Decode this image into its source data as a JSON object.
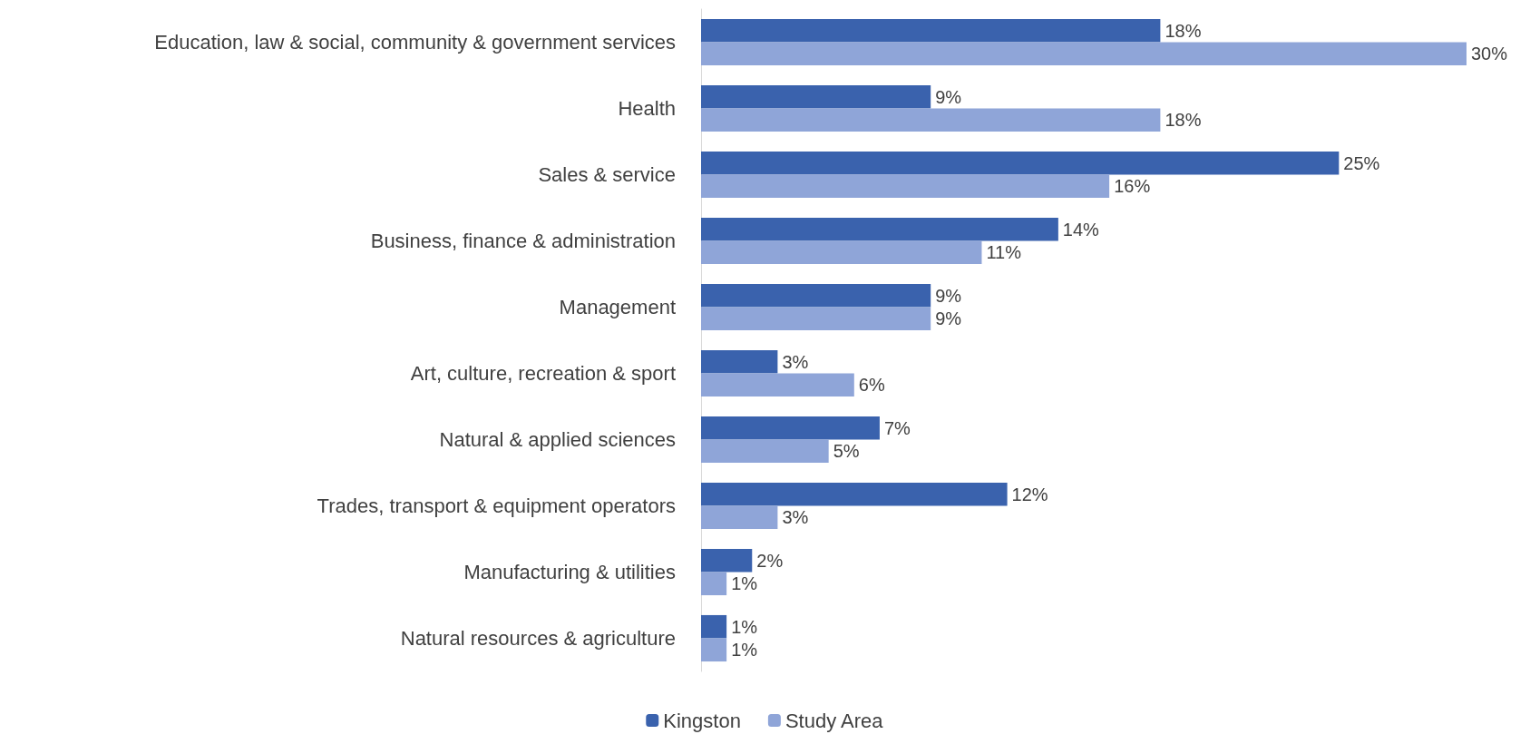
{
  "chart_data": {
    "type": "bar",
    "orientation": "horizontal",
    "legend": "bottom",
    "categories": [
      "Education, law & social, community & government services",
      "Health",
      "Sales & service",
      "Business, finance & administration",
      "Management",
      "Art, culture, recreation & sport",
      "Natural & applied sciences",
      "Trades, transport & equipment operators",
      "Manufacturing & utilities",
      "Natural resources & agriculture"
    ],
    "series": [
      {
        "name": "Kingston",
        "color": "#3a62ad",
        "values": [
          18,
          9,
          25,
          14,
          9,
          3,
          7,
          12,
          2,
          1
        ],
        "value_labels": [
          "18%",
          "9%",
          "25%",
          "14%",
          "9%",
          "3%",
          "7%",
          "12%",
          "2%",
          "1%"
        ]
      },
      {
        "name": "Study Area",
        "color": "#8fa5d8",
        "values": [
          30,
          18,
          16,
          11,
          9,
          6,
          5,
          3,
          1,
          1
        ],
        "value_labels": [
          "30%",
          "18%",
          "16%",
          "11%",
          "9%",
          "6%",
          "5%",
          "3%",
          "1%",
          "1%"
        ]
      }
    ]
  }
}
